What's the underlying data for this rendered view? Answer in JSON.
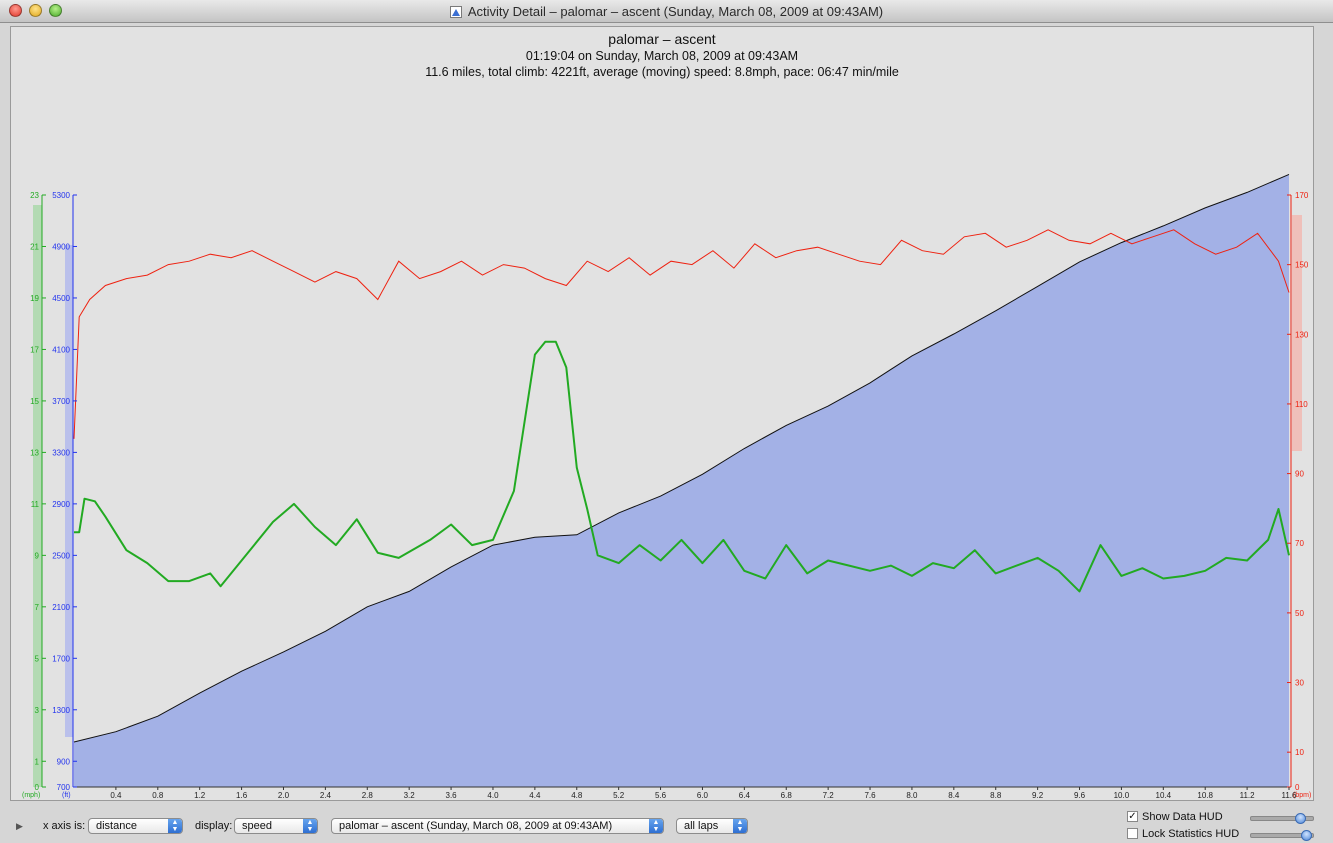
{
  "window": {
    "title": "Activity Detail – palomar – ascent  (Sunday, March 08, 2009 at 09:43AM)"
  },
  "header": {
    "title": "palomar – ascent",
    "line2": "01:19:04 on Sunday, March 08, 2009 at 09:43AM",
    "line3": "11.6 miles, total climb: 4221ft, average (moving) speed: 8.8mph, pace: 06:47 min/mile"
  },
  "chart_data": {
    "type": "line",
    "x_axis": {
      "unit": "mi",
      "range": [
        0,
        11.6
      ],
      "ticks": [
        "0.4",
        "0.8",
        "1.2",
        "1.6",
        "2.0",
        "2.4",
        "2.8",
        "3.2",
        "3.6",
        "4.0",
        "4.4",
        "4.8",
        "5.2",
        "5.6",
        "6.0",
        "6.4",
        "6.8",
        "7.2",
        "7.6",
        "8.0",
        "8.4",
        "8.8",
        "9.2",
        "9.6",
        "10.0",
        "10.4",
        "10.8",
        "11.2",
        "11.6"
      ]
    },
    "axes": {
      "speed": {
        "unit_label": "(mph)",
        "color": "#22aa22",
        "range": [
          0,
          23
        ],
        "ticks": [
          "0",
          "1",
          "3",
          "5",
          "7",
          "9",
          "11",
          "13",
          "15",
          "17",
          "19",
          "21",
          "23"
        ]
      },
      "altitude": {
        "unit_label": "(ft)",
        "color": "#2233ee",
        "range": [
          700,
          5300
        ],
        "ticks": [
          "700",
          "900",
          "1300",
          "1700",
          "2100",
          "2500",
          "2900",
          "3300",
          "3700",
          "4100",
          "4500",
          "4900",
          "5300"
        ]
      },
      "heartrate": {
        "unit_label": "(bpm)",
        "color": "#ee2211",
        "range": [
          0,
          170
        ],
        "ticks": [
          "0",
          "10",
          "30",
          "50",
          "70",
          "90",
          "110",
          "130",
          "150",
          "170"
        ]
      }
    },
    "series": [
      {
        "axis": "altitude",
        "style": "area",
        "fill": "#a3b1e6",
        "x": [
          0,
          0.4,
          0.8,
          1.2,
          1.6,
          2.0,
          2.4,
          2.8,
          3.2,
          3.6,
          4.0,
          4.4,
          4.8,
          5.2,
          5.6,
          6.0,
          6.4,
          6.8,
          7.2,
          7.6,
          8.0,
          8.4,
          8.8,
          9.2,
          9.6,
          10.0,
          10.4,
          10.8,
          11.2,
          11.6
        ],
        "y": [
          1050,
          1130,
          1250,
          1430,
          1600,
          1750,
          1910,
          2100,
          2220,
          2410,
          2580,
          2640,
          2660,
          2830,
          2960,
          3130,
          3330,
          3510,
          3660,
          3840,
          4050,
          4220,
          4400,
          4590,
          4780,
          4930,
          5060,
          5200,
          5320,
          5460
        ]
      },
      {
        "axis": "speed",
        "style": "line",
        "color": "#22aa22",
        "x": [
          0,
          0.05,
          0.1,
          0.2,
          0.3,
          0.5,
          0.7,
          0.9,
          1.1,
          1.3,
          1.4,
          1.6,
          1.7,
          1.9,
          2.1,
          2.3,
          2.5,
          2.7,
          2.9,
          3.1,
          3.4,
          3.6,
          3.8,
          4.0,
          4.2,
          4.4,
          4.5,
          4.6,
          4.7,
          4.8,
          4.9,
          5.0,
          5.2,
          5.4,
          5.6,
          5.8,
          6.0,
          6.2,
          6.4,
          6.6,
          6.8,
          7.0,
          7.2,
          7.4,
          7.6,
          7.8,
          8.0,
          8.2,
          8.4,
          8.6,
          8.8,
          9.0,
          9.2,
          9.4,
          9.6,
          9.8,
          10.0,
          10.2,
          10.4,
          10.6,
          10.8,
          11.0,
          11.2,
          11.4,
          11.5,
          11.6
        ],
        "y": [
          9.9,
          9.9,
          11.2,
          11.1,
          10.5,
          9.2,
          8.7,
          8.0,
          8.0,
          8.3,
          7.8,
          8.8,
          9.3,
          10.3,
          11.0,
          10.1,
          9.4,
          10.4,
          9.1,
          8.9,
          9.6,
          10.2,
          9.4,
          9.6,
          11.5,
          16.8,
          17.3,
          17.3,
          16.3,
          12.4,
          10.8,
          9.0,
          8.7,
          9.4,
          8.8,
          9.6,
          8.7,
          9.6,
          8.4,
          8.1,
          9.4,
          8.3,
          8.8,
          8.6,
          8.4,
          8.6,
          8.2,
          8.7,
          8.5,
          9.2,
          8.3,
          8.6,
          8.9,
          8.4,
          7.6,
          9.4,
          8.2,
          8.5,
          8.1,
          8.2,
          8.4,
          8.9,
          8.8,
          9.6,
          10.8,
          9.0
        ]
      },
      {
        "axis": "heartrate",
        "style": "line",
        "color": "#ee2211",
        "x": [
          0,
          0.05,
          0.15,
          0.3,
          0.5,
          0.7,
          0.9,
          1.1,
          1.3,
          1.5,
          1.7,
          1.9,
          2.1,
          2.3,
          2.5,
          2.7,
          2.9,
          3.1,
          3.3,
          3.5,
          3.7,
          3.9,
          4.1,
          4.3,
          4.5,
          4.7,
          4.9,
          5.1,
          5.3,
          5.5,
          5.7,
          5.9,
          6.1,
          6.3,
          6.5,
          6.7,
          6.9,
          7.1,
          7.3,
          7.5,
          7.7,
          7.9,
          8.1,
          8.3,
          8.5,
          8.7,
          8.9,
          9.1,
          9.3,
          9.5,
          9.7,
          9.9,
          10.1,
          10.3,
          10.5,
          10.7,
          10.9,
          11.1,
          11.3,
          11.5,
          11.6
        ],
        "y": [
          100,
          135,
          140,
          144,
          146,
          147,
          150,
          151,
          153,
          152,
          154,
          151,
          148,
          145,
          148,
          146,
          140,
          151,
          146,
          148,
          151,
          147,
          150,
          149,
          146,
          144,
          151,
          148,
          152,
          147,
          151,
          150,
          154,
          149,
          156,
          152,
          154,
          155,
          153,
          151,
          150,
          157,
          154,
          153,
          158,
          159,
          155,
          157,
          160,
          157,
          156,
          159,
          156,
          158,
          160,
          156,
          153,
          155,
          159,
          151,
          142
        ]
      }
    ]
  },
  "controls": {
    "x_axis_label": "x axis is:",
    "x_axis_value": "distance",
    "display_label": "display:",
    "display_value": "speed",
    "activity_value": "palomar – ascent  (Sunday, March 08, 2009 at 09:43AM)",
    "laps_value": "all laps",
    "show_data_hud": "Show Data HUD",
    "lock_stats_hud": "Lock Statistics HUD"
  }
}
